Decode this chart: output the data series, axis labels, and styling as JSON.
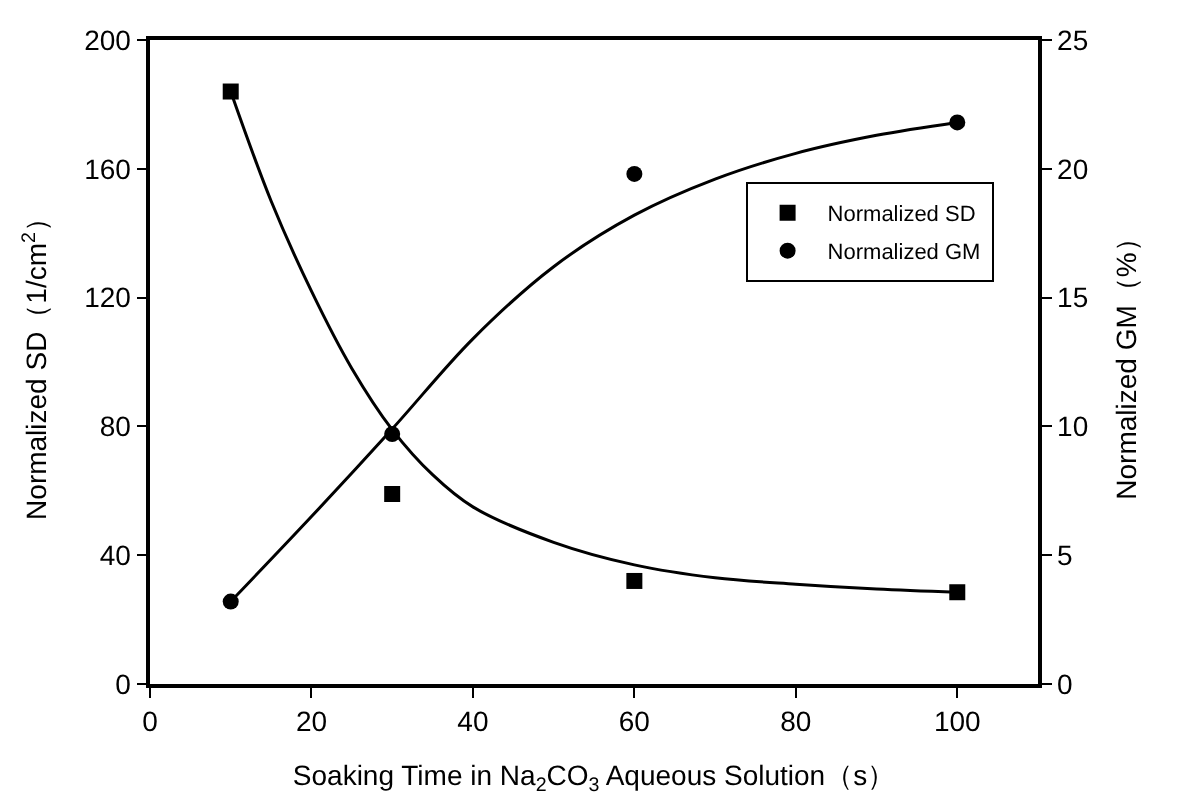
{
  "chart_data": {
    "type": "scatter",
    "xlabel": "Soaking Time in Na$_{2}$CO$_{3}$ Aqueous Solution（s）",
    "ylabel": "Normalized SD（1/cm$^{2}$）",
    "y2label": "Normalized GM（%）",
    "xlim": [
      0,
      110
    ],
    "xticks": [
      0,
      20,
      40,
      60,
      80,
      100
    ],
    "ylim": [
      0,
      200
    ],
    "yticks": [
      0,
      40,
      80,
      120,
      160,
      200
    ],
    "y2lim": [
      0,
      25
    ],
    "y2ticks": [
      0,
      5,
      10,
      15,
      20,
      25
    ],
    "legend": "top right",
    "series": [
      {
        "name": "Normalized SD",
        "marker": "square",
        "color": "#000000",
        "x": [
          10,
          30,
          60,
          100
        ],
        "values": [
          184,
          59,
          32,
          28.5
        ]
      },
      {
        "name": "Normalized GM",
        "marker": "circle",
        "color": "#000000",
        "axis": "y2",
        "x": [
          10,
          30,
          60,
          100
        ],
        "values": [
          3.2,
          9.7,
          19.8,
          21.8
        ]
      },
      {
        "type": "line",
        "color": "#000000",
        "line_style": "solid",
        "x": [
          10,
          15,
          20,
          25,
          30,
          35,
          40,
          50,
          60,
          70,
          80,
          90,
          100
        ],
        "values": [
          184,
          150,
          122,
          98,
          79,
          65,
          55,
          44,
          37,
          33,
          31,
          29.5,
          28.5
        ]
      },
      {
        "type": "line",
        "color": "#000000",
        "line_style": "solid",
        "axis": "y2",
        "x": [
          10,
          20,
          30,
          40,
          50,
          60,
          70,
          80,
          90,
          100
        ],
        "values": [
          3.2,
          6.5,
          9.9,
          13.4,
          16.2,
          18.2,
          19.6,
          20.6,
          21.3,
          21.8
        ]
      }
    ]
  }
}
